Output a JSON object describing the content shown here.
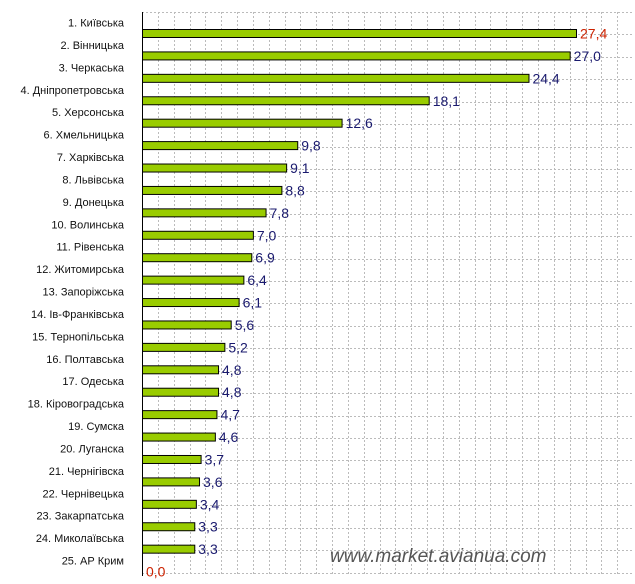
{
  "chart_data": {
    "type": "bar",
    "orientation": "horizontal",
    "categories": [
      "1. Київська",
      "2. Вінницька",
      "3. Черкаська",
      "4. Дніпропетровська",
      "5. Херсонська",
      "6. Хмельницька",
      "7. Харківська",
      "8. Львівська",
      "9. Донецька",
      "10. Волинська",
      "11. Рівенська",
      "12. Житомирська",
      "13. Запоріжська",
      "14. Ів-Франківська",
      "15. Тернопільська",
      "16. Полтавська",
      "17. Одеська",
      "18. Кіровоградська",
      "19. Сумска",
      "20. Луганска",
      "21. Чернігівска",
      "22. Чернівецька",
      "23. Закарпатська",
      "24. Миколаївська",
      "25. АР Крим"
    ],
    "values": [
      27.4,
      27.0,
      24.4,
      18.1,
      12.6,
      9.8,
      9.1,
      8.8,
      7.8,
      7.0,
      6.9,
      6.4,
      6.1,
      5.6,
      5.2,
      4.8,
      4.8,
      4.7,
      4.6,
      3.7,
      3.6,
      3.4,
      3.3,
      3.3,
      0.0
    ],
    "value_labels": [
      "27,4",
      "27,0",
      "24,4",
      "18,1",
      "12,6",
      "9,8",
      "9,1",
      "8,8",
      "7,8",
      "7,0",
      "6,9",
      "6,4",
      "6,1",
      "5,6",
      "5,2",
      "4,8",
      "4,8",
      "4,7",
      "4,6",
      "3,7",
      "3,6",
      "3,4",
      "3,3",
      "3,3",
      "0,0"
    ],
    "xlim": [
      0,
      30
    ],
    "grid": true,
    "title": "",
    "xlabel": "",
    "ylabel": ""
  },
  "colors": {
    "bar_fill": "#99cc00",
    "bar_stroke": "#000000",
    "value_label": "#1a1a6e",
    "value_label_highlight": "#cc2200",
    "grid": "#bbbbbb"
  },
  "watermark": "www.market.avianua.com"
}
